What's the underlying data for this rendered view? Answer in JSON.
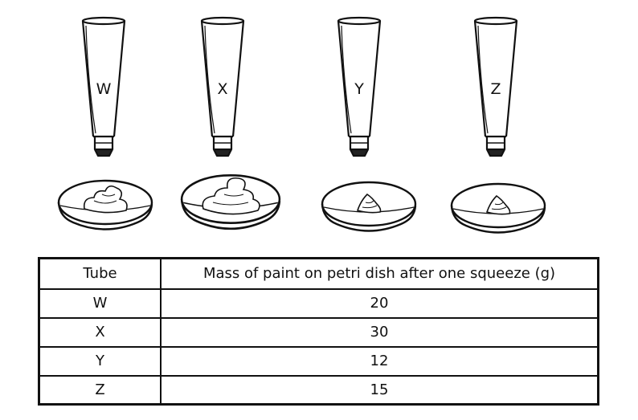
{
  "tubes": [
    {
      "label": "W",
      "paint_blob": "large"
    },
    {
      "label": "X",
      "paint_blob": "largest"
    },
    {
      "label": "Y",
      "paint_blob": "small"
    },
    {
      "label": "Z",
      "paint_blob": "small"
    }
  ],
  "table": {
    "headers": [
      "Tube",
      "Mass of paint on petri dish after one squeeze (g)"
    ],
    "rows": [
      {
        "tube": "W",
        "mass": "20"
      },
      {
        "tube": "X",
        "mass": "30"
      },
      {
        "tube": "Y",
        "mass": "12"
      },
      {
        "tube": "Z",
        "mass": "15"
      }
    ]
  }
}
